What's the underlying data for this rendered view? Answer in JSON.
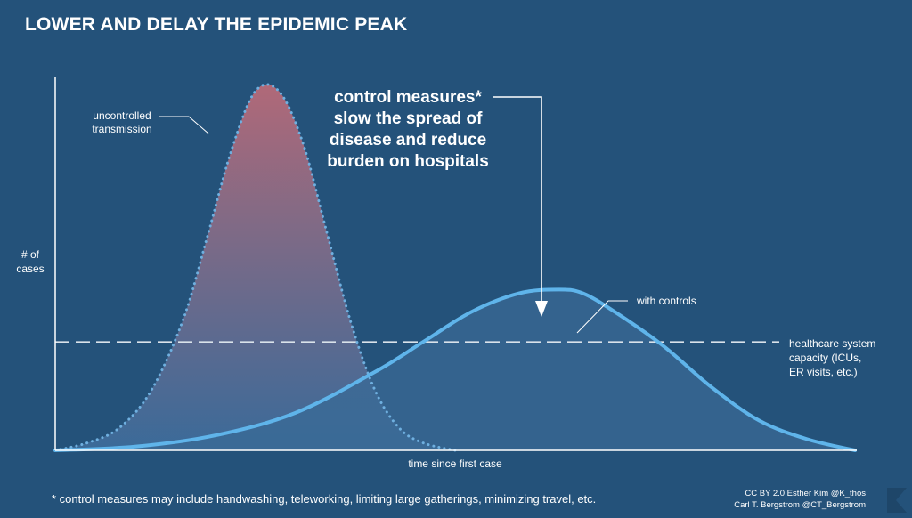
{
  "title": "LOWER AND DELAY THE EPIDEMIC PEAK",
  "footnote": "* control measures may include handwashing, teleworking, limiting large gatherings, minimizing travel, etc.",
  "credits": {
    "line1": "CC BY 2.0  Esther Kim  @K_thos",
    "line2": "Carl T. Bergstrom  @CT_Bergstrom"
  },
  "colors": {
    "background": "#24527a",
    "uncontrolled_top": "#b86a78",
    "uncontrolled_bottom": "#3f6f9e",
    "dotted_outline": "#6fb0e0",
    "controls_line": "#5fb4ea",
    "controls_fill": "#3a6a95",
    "capacity_line": "#d9e2ea",
    "axis": "#ffffff"
  },
  "chart_data": {
    "type": "area",
    "title": "LOWER AND DELAY THE EPIDEMIC PEAK",
    "xlabel": "time since first case",
    "ylabel": "# of\ncases",
    "ylabel_lines": [
      "# of",
      "cases"
    ],
    "xlim": [
      0,
      100
    ],
    "ylim": [
      0,
      100
    ],
    "series": [
      {
        "name": "uncontrolled\ntransmission",
        "label_lines": [
          "uncontrolled",
          "transmission"
        ],
        "style": "dotted-gradient",
        "x": [
          0,
          4,
          8,
          12,
          16,
          19,
          22,
          25,
          28,
          31,
          34,
          37,
          40,
          43,
          46,
          50
        ],
        "y": [
          0,
          2,
          6,
          16,
          35,
          57,
          80,
          96,
          96,
          82,
          58,
          34,
          16,
          6,
          2,
          0
        ]
      },
      {
        "name": "with controls",
        "label_lines": [
          "with controls"
        ],
        "style": "solid",
        "x": [
          0,
          10,
          20,
          30,
          40,
          46,
          52,
          58,
          63,
          66,
          70,
          76,
          82,
          88,
          94,
          100
        ],
        "y": [
          0,
          1,
          4,
          10,
          21,
          29,
          37,
          42,
          43,
          42,
          37,
          28,
          17,
          8,
          3,
          0
        ]
      }
    ],
    "reference_line": {
      "y": 29,
      "label_lines": [
        "healthcare system",
        "capacity (ICUs,",
        "ER visits, etc.)"
      ]
    },
    "annotation": {
      "lines": [
        "control measures*",
        "slow the spread of",
        "disease and reduce",
        "burden on hospitals"
      ]
    },
    "grid": false
  }
}
